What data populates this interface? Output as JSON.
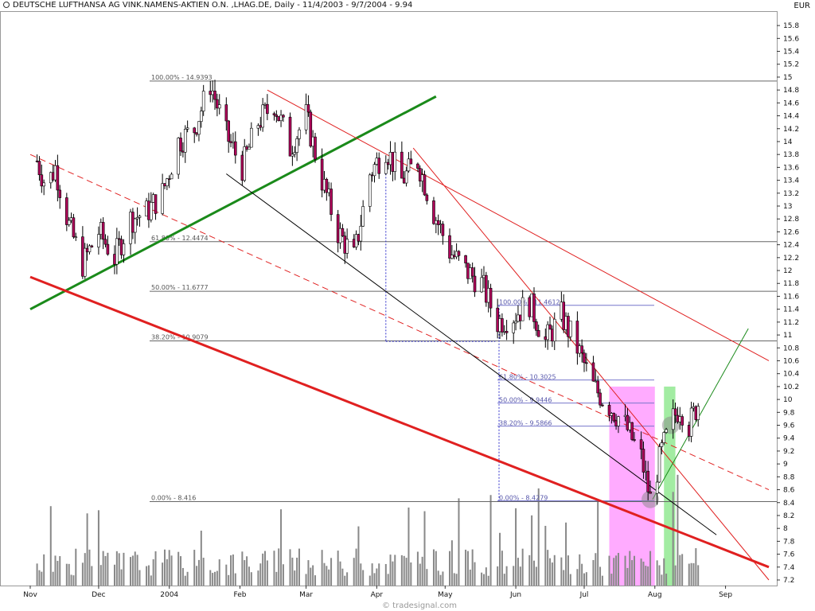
{
  "header": {
    "title": "DEUTSCHE LUFTHANSA AG VINK.NAMENS-AKTIEN O.N. ,LHAG.DE, Daily - 11/4/2003 - 9/7/2004 - 9.94",
    "currency": "EUR"
  },
  "footer": {
    "credit": "© tradesignal.com"
  },
  "colors": {
    "up_candle": "#ffffff",
    "down_candle": "#b0005a",
    "candle_outline": "#000000",
    "fib_line": "#666666",
    "green_trend": "#1a8a1a",
    "red_channel": "#e02020",
    "highlight_magenta": "#ff66ff",
    "highlight_green": "#55dd55",
    "volume_bar": "#888888"
  },
  "chart_data": {
    "type": "candlestick",
    "title": "DEUTSCHE LUFTHANSA AG VINK.NAMENS-AKTIEN O.N. ,LHAG.DE, Daily - 11/4/2003 - 9/7/2004 - 9.94",
    "ylabel": "EUR",
    "ylim": [
      7.2,
      15.9
    ],
    "y_ticks": [
      "15.8",
      "15.6",
      "15.4",
      "15.2",
      "15",
      "14.8",
      "14.6",
      "14.4",
      "14.2",
      "14",
      "13.8",
      "13.6",
      "13.4",
      "13.2",
      "13",
      "12.8",
      "12.6",
      "12.4",
      "12.2",
      "12",
      "11.8",
      "11.6",
      "11.4",
      "11.2",
      "11",
      "10.8",
      "10.6",
      "10.4",
      "10.2",
      "10",
      "9.8",
      "9.6",
      "9.4",
      "9.2",
      "9",
      "8.8",
      "8.6",
      "8.4",
      "8.2",
      "8",
      "7.8",
      "7.6",
      "7.4",
      "7.2"
    ],
    "x_ticks": [
      {
        "label": "Nov",
        "date": "2003-11-01"
      },
      {
        "label": "Dec",
        "date": "2003-12-01"
      },
      {
        "label": "2004",
        "date": "2004-01-01"
      },
      {
        "label": "Feb",
        "date": "2004-02-01"
      },
      {
        "label": "Mar",
        "date": "2004-03-01"
      },
      {
        "label": "Apr",
        "date": "2004-04-01"
      },
      {
        "label": "May",
        "date": "2004-05-01"
      },
      {
        "label": "Jun",
        "date": "2004-06-01"
      },
      {
        "label": "Jul",
        "date": "2004-07-01"
      },
      {
        "label": "Aug",
        "date": "2004-08-01"
      },
      {
        "label": "Sep",
        "date": "2004-09-01"
      }
    ],
    "last_price": 9.94,
    "price_path": [
      [
        "2003-11-04",
        13.7
      ],
      [
        "2003-11-08",
        13.3
      ],
      [
        "2003-11-12",
        13.6
      ],
      [
        "2003-11-18",
        12.7
      ],
      [
        "2003-11-24",
        12.1
      ],
      [
        "2003-12-01",
        12.6
      ],
      [
        "2003-12-08",
        12.2
      ],
      [
        "2003-12-15",
        12.8
      ],
      [
        "2003-12-22",
        12.9
      ],
      [
        "2003-12-29",
        13.2
      ],
      [
        "2004-01-05",
        14.0
      ],
      [
        "2004-01-12",
        14.2
      ],
      [
        "2004-01-19",
        14.9
      ],
      [
        "2004-01-26",
        14.1
      ],
      [
        "2004-02-02",
        13.6
      ],
      [
        "2004-02-09",
        14.3
      ],
      [
        "2004-02-16",
        14.6
      ],
      [
        "2004-02-23",
        13.9
      ],
      [
        "2004-03-01",
        14.4
      ],
      [
        "2004-03-08",
        13.4
      ],
      [
        "2004-03-15",
        12.6
      ],
      [
        "2004-03-22",
        12.2
      ],
      [
        "2004-03-29",
        13.5
      ],
      [
        "2004-04-05",
        13.9
      ],
      [
        "2004-04-12",
        13.4
      ],
      [
        "2004-04-19",
        13.7
      ],
      [
        "2004-04-26",
        12.9
      ],
      [
        "2004-05-03",
        12.3
      ],
      [
        "2004-05-10",
        12.0
      ],
      [
        "2004-05-17",
        11.8
      ],
      [
        "2004-05-24",
        11.2
      ],
      [
        "2004-05-31",
        11.3
      ],
      [
        "2004-06-07",
        11.5
      ],
      [
        "2004-06-14",
        10.9
      ],
      [
        "2004-06-21",
        11.3
      ],
      [
        "2004-06-28",
        10.8
      ],
      [
        "2004-07-05",
        10.2
      ],
      [
        "2004-07-12",
        9.9
      ],
      [
        "2004-07-19",
        9.6
      ],
      [
        "2004-07-26",
        9.1
      ],
      [
        "2004-07-30",
        8.45
      ],
      [
        "2004-08-04",
        9.2
      ],
      [
        "2004-08-09",
        9.7
      ],
      [
        "2004-08-12",
        9.9
      ],
      [
        "2004-08-16",
        9.6
      ],
      [
        "2004-08-20",
        9.94
      ]
    ],
    "fib_levels_major": [
      {
        "label": "100.00% - 14.9393",
        "value": 14.9393
      },
      {
        "label": "61.80% - 12.4474",
        "value": 12.4474
      },
      {
        "label": "50.00% - 11.6777",
        "value": 11.6777
      },
      {
        "label": "38.20% - 10.9079",
        "value": 10.9079
      },
      {
        "label": "0.00% - 8.416",
        "value": 8.416
      }
    ],
    "fib_levels_minor": [
      {
        "label": "100.00% - 11.4612",
        "value": 11.4612
      },
      {
        "label": "61.80% - 10.3025",
        "value": 10.3025
      },
      {
        "label": "50.00% - 9.9446",
        "value": 9.9446
      },
      {
        "label": "38.20% - 9.5866",
        "value": 9.5866
      },
      {
        "label": "0.00% - 8.4279",
        "value": 8.4279
      }
    ],
    "trendlines": [
      {
        "name": "green-support",
        "color": "#1a8a1a",
        "from": [
          "2003-11-01",
          11.4
        ],
        "to": [
          "2004-04-27",
          14.7
        ]
      },
      {
        "name": "red-lower-channel",
        "color": "#e02020",
        "from": [
          "2003-11-01",
          11.9
        ],
        "to": [
          "2004-09-20",
          7.4
        ]
      },
      {
        "name": "red-upper-channel",
        "color": "#e02020",
        "from": [
          "2004-02-13",
          14.8
        ],
        "to": [
          "2004-09-20",
          10.6
        ]
      },
      {
        "name": "red-steep",
        "color": "#e02020",
        "from": [
          "2004-04-17",
          13.9
        ],
        "to": [
          "2004-09-20",
          7.2
        ]
      },
      {
        "name": "red-dashed-mid",
        "color": "#e02020",
        "from": [
          "2003-11-01",
          13.8
        ],
        "to": [
          "2004-09-20",
          8.6
        ]
      },
      {
        "name": "black-decline",
        "color": "#000000",
        "from": [
          "2004-01-26",
          13.5
        ],
        "to": [
          "2004-08-28",
          7.9
        ]
      },
      {
        "name": "green-rebound",
        "color": "#1a8a1a",
        "from": [
          "2004-07-31",
          8.45
        ],
        "to": [
          "2004-09-11",
          11.1
        ]
      }
    ],
    "highlight_zones": [
      {
        "name": "magenta-zone",
        "from": "2004-07-12",
        "to": "2004-08-01",
        "color": "#ff66ff"
      },
      {
        "name": "green-zone",
        "from": "2004-08-05",
        "to": "2004-08-10",
        "color": "#55dd55"
      }
    ],
    "volume": "relative bars along the bottom of the plot"
  }
}
